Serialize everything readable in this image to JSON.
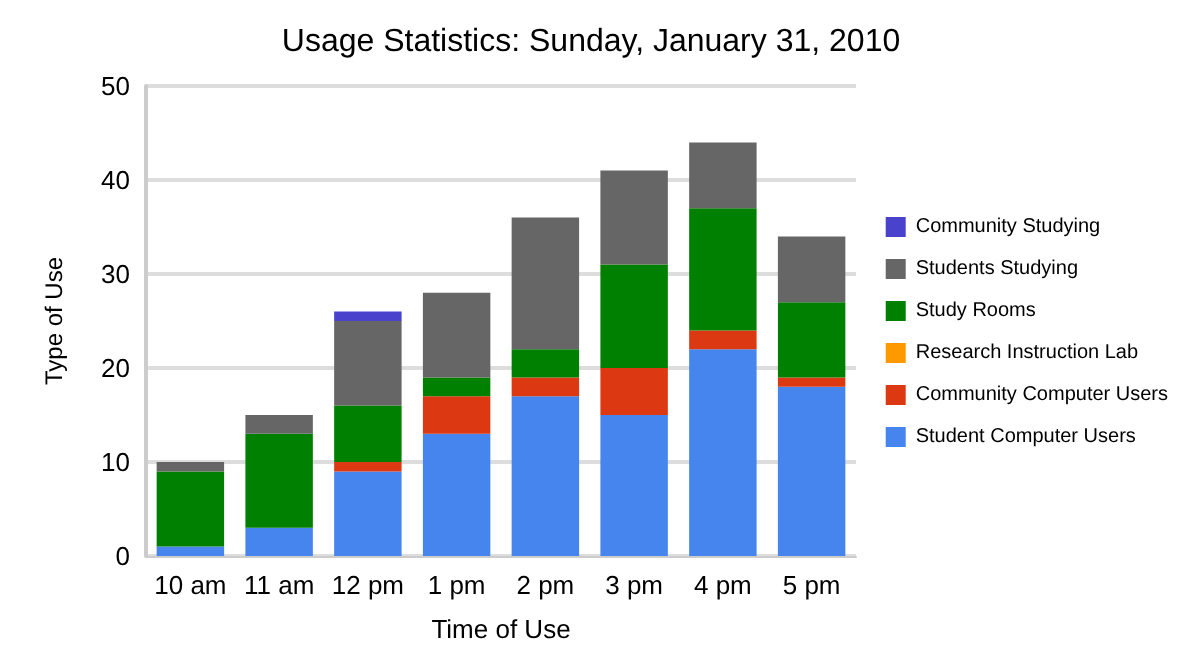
{
  "chart_data": {
    "type": "bar",
    "title": "Usage Statistics: Sunday, January 31, 2010",
    "xlabel": "Time of Use",
    "ylabel": "Type of Use",
    "categories": [
      "10 am",
      "11 am",
      "12 pm",
      "1 pm",
      "2 pm",
      "3 pm",
      "4 pm",
      "5 pm"
    ],
    "stacked": true,
    "ylim": [
      0,
      50
    ],
    "yticks": [
      0,
      10,
      20,
      30,
      40,
      50
    ],
    "grid": "y",
    "legend": "right",
    "series": [
      {
        "name": "Student Computer Users",
        "color": "#4684ee",
        "values": [
          1,
          3,
          9,
          13,
          17,
          15,
          22,
          18
        ]
      },
      {
        "name": "Community Computer Users",
        "color": "#dc3912",
        "values": [
          0,
          0,
          1,
          4,
          2,
          5,
          2,
          1
        ]
      },
      {
        "name": "Research Instruction Lab",
        "color": "#ff9900",
        "values": [
          0,
          0,
          0,
          0,
          0,
          0,
          0,
          0
        ]
      },
      {
        "name": "Study Rooms",
        "color": "#008000",
        "values": [
          8,
          10,
          6,
          2,
          3,
          11,
          13,
          8
        ]
      },
      {
        "name": "Students Studying",
        "color": "#666666",
        "values": [
          1,
          2,
          9,
          9,
          14,
          10,
          7,
          7
        ]
      },
      {
        "name": "Community Studying",
        "color": "#4942cc",
        "values": [
          0,
          0,
          1,
          0,
          0,
          0,
          0,
          0
        ]
      }
    ]
  }
}
